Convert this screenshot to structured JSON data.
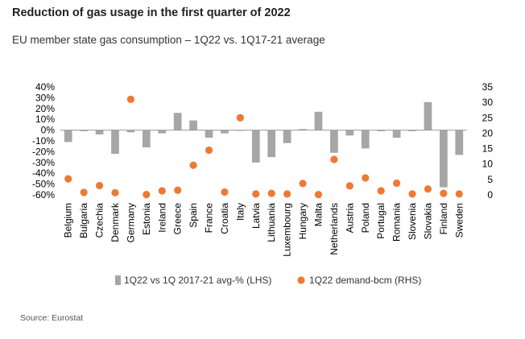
{
  "title": "Reduction of gas usage in the first quarter of 2022",
  "subtitle": "EU member state gas consumption – 1Q22 vs. 1Q17-21 average",
  "source": "Source: Eurostat",
  "colors": {
    "bar": "#a6a6a6",
    "dot": "#ed7a34",
    "axis": "#999999"
  },
  "chart_data": {
    "type": "bar",
    "categories": [
      "Belgium",
      "Bulgaria",
      "Czechia",
      "Denmark",
      "Germany",
      "Estonia",
      "Ireland",
      "Greece",
      "Spain",
      "France",
      "Croatia",
      "Italy",
      "Latvia",
      "Lithuania",
      "Luxembourg",
      "Hungary",
      "Malta",
      "Netherlands",
      "Austria",
      "Poland",
      "Portugal",
      "Romania",
      "Slovenia",
      "Slovakia",
      "Finland",
      "Sweden"
    ],
    "series": [
      {
        "name": "1Q22 vs 1Q 2017-21 avg-% (LHS)",
        "type": "bar",
        "axis": "left",
        "values": [
          -11,
          -1,
          -4,
          -22,
          -2,
          -16,
          -3,
          16,
          9,
          -7,
          -3,
          0,
          -30,
          -25,
          -12,
          1,
          17,
          -21,
          -5,
          -17,
          -1,
          -7,
          -1,
          26,
          -53,
          -23
        ]
      },
      {
        "name": "1Q22 demand-bcm (RHS)",
        "type": "scatter",
        "axis": "right",
        "values": [
          5.2,
          0.8,
          3.0,
          0.7,
          31.0,
          0.1,
          1.3,
          1.5,
          9.6,
          14.5,
          0.9,
          25.0,
          0.3,
          0.5,
          0.3,
          3.7,
          0.1,
          11.5,
          2.9,
          5.5,
          1.3,
          3.8,
          0.3,
          1.9,
          0.5,
          0.3
        ]
      }
    ],
    "y_left": {
      "ylim": [
        -60,
        40
      ],
      "ticks": [
        "40%",
        "30%",
        "20%",
        "10%",
        "0%",
        "-10%",
        "-20%",
        "-30%",
        "-40%",
        "-50%",
        "-60%"
      ]
    },
    "y_right": {
      "ylim": [
        0,
        35
      ],
      "ticks": [
        "35",
        "30",
        "25",
        "20",
        "15",
        "10",
        "5",
        "0"
      ]
    },
    "legend_position": "bottom",
    "legend": [
      "1Q22 vs 1Q 2017-21 avg-% (LHS)",
      "1Q22 demand-bcm (RHS)"
    ]
  }
}
